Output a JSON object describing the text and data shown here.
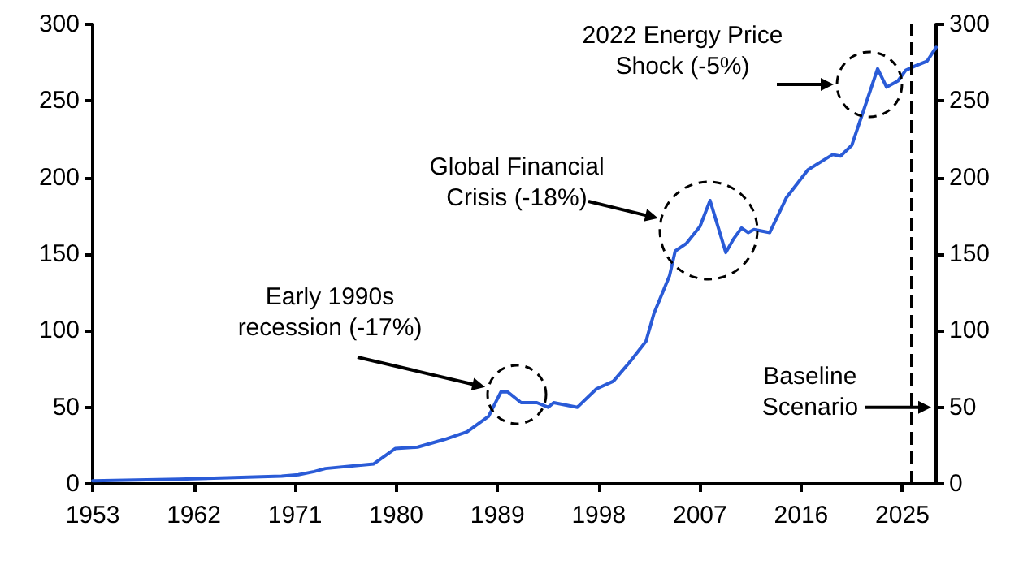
{
  "chart_data": {
    "type": "line",
    "x": [
      1953,
      1960.7,
      1965,
      1969.8,
      1971.3,
      1972.7,
      1973.7,
      1978,
      1979.9,
      1981.9,
      1984.3,
      1986.3,
      1988.2,
      1989.3,
      1989.9,
      1991.1,
      1992.5,
      1993.5,
      1994,
      1996.1,
      1997.8,
      1999.3,
      2000.7,
      2002.2,
      2002.9,
      2004.3,
      2004.8,
      2005.8,
      2007,
      2007.9,
      2009.3,
      2010,
      2010.7,
      2011.3,
      2011.8,
      2013.2,
      2014.7,
      2016.6,
      2018.8,
      2019.5,
      2020.5,
      2021.7,
      2022.8,
      2023.6,
      2024.6,
      2025.3,
      2026.2,
      2027.2,
      2028
    ],
    "series": [
      {
        "color": "#2a5bd7",
        "values": [
          2,
          3,
          4,
          5,
          6,
          8,
          10,
          13,
          23,
          24,
          29,
          34,
          44,
          60,
          60,
          53,
          53,
          50,
          53,
          50,
          62,
          67,
          79,
          93,
          111,
          136,
          152,
          157,
          168,
          185,
          151,
          160,
          167,
          164,
          166,
          164,
          187,
          205,
          215,
          214,
          221,
          247,
          271,
          259,
          263,
          270,
          273,
          276,
          285
        ]
      }
    ],
    "xlim": [
      1953,
      2028
    ],
    "xticks": [
      1953,
      1962,
      1971,
      1980,
      1989,
      1998,
      2007,
      2016,
      2025
    ],
    "ylim": [
      0,
      300
    ],
    "yticks": [
      0,
      50,
      100,
      150,
      200,
      250,
      300
    ],
    "y2lim": [
      0,
      300
    ],
    "y2ticks": [
      0,
      50,
      100,
      150,
      200,
      250,
      300
    ],
    "grid": false,
    "marker": "none",
    "line_style": "solid",
    "ref_lines": [
      {
        "axis": "x",
        "value": 2025.75,
        "label": "Baseline Scenario",
        "line_style": "dashed",
        "color": "#000000"
      }
    ],
    "annotations": [
      "Early 1990s recession (-17%)",
      "Global Financial Crisis (-18%)",
      "2022 Energy Price Shock (-5%)"
    ]
  }
}
